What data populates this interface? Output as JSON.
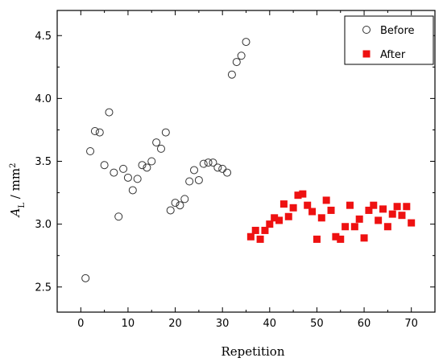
{
  "chart_data": {
    "type": "scatter",
    "title": "",
    "xlabel": "Repetition",
    "ylabel": {
      "main": "A",
      "sub": "L",
      "unit": " / mm",
      "sup": "2"
    },
    "xlim": [
      -5,
      75
    ],
    "ylim": [
      2.3,
      4.7
    ],
    "x_ticks": [
      0,
      10,
      20,
      30,
      40,
      50,
      60,
      70
    ],
    "y_ticks": [
      2.5,
      3.0,
      3.5,
      4.0,
      4.5
    ],
    "y_tick_labels": [
      "2.5",
      "3.0",
      "3.5",
      "4.0",
      "4.5"
    ],
    "grid": false,
    "legend_position": "top-right",
    "series": [
      {
        "name": "Before",
        "marker": "open-circle",
        "color": "#333333",
        "points": [
          [
            1,
            2.57
          ],
          [
            2,
            3.58
          ],
          [
            3,
            3.74
          ],
          [
            4,
            3.73
          ],
          [
            5,
            3.47
          ],
          [
            6,
            3.89
          ],
          [
            7,
            3.41
          ],
          [
            8,
            3.06
          ],
          [
            9,
            3.44
          ],
          [
            10,
            3.37
          ],
          [
            11,
            3.27
          ],
          [
            12,
            3.36
          ],
          [
            13,
            3.47
          ],
          [
            14,
            3.45
          ],
          [
            15,
            3.5
          ],
          [
            16,
            3.65
          ],
          [
            17,
            3.6
          ],
          [
            18,
            3.73
          ],
          [
            19,
            3.11
          ],
          [
            20,
            3.17
          ],
          [
            21,
            3.15
          ],
          [
            22,
            3.2
          ],
          [
            23,
            3.34
          ],
          [
            24,
            3.43
          ],
          [
            25,
            3.35
          ],
          [
            26,
            3.48
          ],
          [
            27,
            3.49
          ],
          [
            28,
            3.49
          ],
          [
            29,
            3.45
          ],
          [
            30,
            3.44
          ],
          [
            31,
            3.41
          ],
          [
            32,
            4.19
          ],
          [
            33,
            4.29
          ],
          [
            34,
            4.34
          ],
          [
            35,
            4.45
          ]
        ]
      },
      {
        "name": "After",
        "marker": "filled-square",
        "color": "#ee1111",
        "points": [
          [
            36,
            2.9
          ],
          [
            37,
            2.95
          ],
          [
            38,
            2.88
          ],
          [
            39,
            2.95
          ],
          [
            40,
            3.0
          ],
          [
            41,
            3.05
          ],
          [
            42,
            3.03
          ],
          [
            43,
            3.16
          ],
          [
            44,
            3.06
          ],
          [
            45,
            3.13
          ],
          [
            46,
            3.23
          ],
          [
            47,
            3.24
          ],
          [
            48,
            3.15
          ],
          [
            49,
            3.1
          ],
          [
            50,
            2.88
          ],
          [
            51,
            3.05
          ],
          [
            52,
            3.19
          ],
          [
            53,
            3.11
          ],
          [
            54,
            2.9
          ],
          [
            55,
            2.88
          ],
          [
            56,
            2.98
          ],
          [
            57,
            3.15
          ],
          [
            58,
            2.98
          ],
          [
            59,
            3.04
          ],
          [
            60,
            2.89
          ],
          [
            61,
            3.11
          ],
          [
            62,
            3.15
          ],
          [
            63,
            3.03
          ],
          [
            64,
            3.12
          ],
          [
            65,
            2.98
          ],
          [
            66,
            3.08
          ],
          [
            67,
            3.14
          ],
          [
            68,
            3.07
          ],
          [
            69,
            3.14
          ],
          [
            70,
            3.01
          ]
        ]
      }
    ]
  }
}
